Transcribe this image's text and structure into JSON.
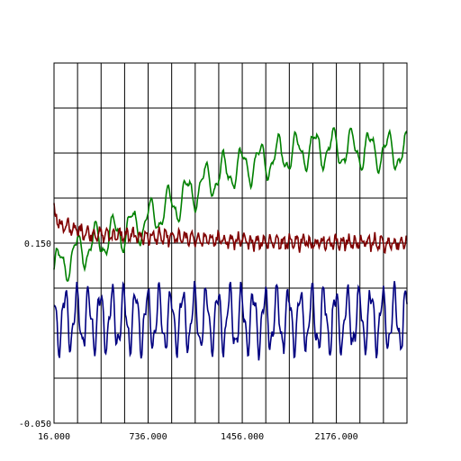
{
  "chart_data": {
    "type": "line",
    "title": "",
    "xlabel": "",
    "ylabel": "",
    "xlim": [
      16,
      2716
    ],
    "ylim": [
      -0.05,
      0.35
    ],
    "grid": true,
    "x_tick_labels": [
      "16.000",
      "736.000",
      "1456.000",
      "2176.000"
    ],
    "x_tick_values": [
      16,
      736,
      1456,
      2176
    ],
    "y_tick_labels": [
      "0.150",
      "-0.050"
    ],
    "y_tick_values": [
      0.15,
      -0.05
    ],
    "series": [
      {
        "color": "#008000",
        "base": [
          [
            16,
            0.12
          ],
          [
            200,
            0.14
          ],
          [
            400,
            0.155
          ],
          [
            736,
            0.175
          ],
          [
            1000,
            0.2
          ],
          [
            1200,
            0.22
          ],
          [
            1456,
            0.235
          ],
          [
            1700,
            0.245
          ],
          [
            2000,
            0.255
          ],
          [
            2300,
            0.255
          ],
          [
            2716,
            0.25
          ]
        ],
        "amplitude": 0.018,
        "period": 140,
        "noise": 0.004
      },
      {
        "color": "#800000",
        "base": [
          [
            16,
            0.185
          ],
          [
            60,
            0.17
          ],
          [
            300,
            0.16
          ],
          [
            736,
            0.157
          ],
          [
            1456,
            0.152
          ],
          [
            2716,
            0.15
          ]
        ],
        "amplitude": 0.006,
        "period": 50,
        "noise": 0.008
      },
      {
        "color": "#000080",
        "base": [
          [
            16,
            0.065
          ],
          [
            2716,
            0.065
          ]
        ],
        "amplitude": 0.03,
        "period": 90,
        "noise": 0.008
      }
    ]
  },
  "colors": {
    "grid": "#000000",
    "axis": "#000000",
    "background": "#ffffff"
  }
}
